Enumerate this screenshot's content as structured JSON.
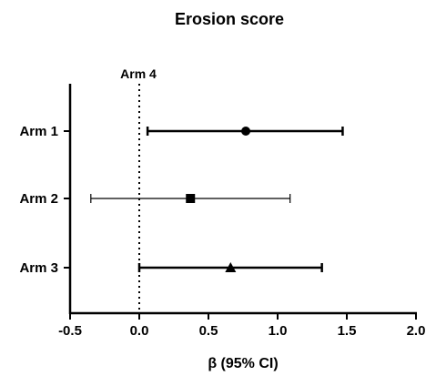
{
  "chart_data": {
    "type": "forest",
    "title": "Erosion score",
    "xlabel": "β (95% CI)",
    "xlim": [
      -0.5,
      2.0
    ],
    "xticks": [
      "-0.5",
      "0.0",
      "0.5",
      "1.0",
      "1.5",
      "2.0"
    ],
    "reference": {
      "label": "Arm 4",
      "x": 0
    },
    "categories": [
      "Arm 1",
      "Arm 2",
      "Arm 3"
    ],
    "series": [
      {
        "category": "Arm 1",
        "estimate": 0.77,
        "lower": 0.06,
        "upper": 1.47,
        "marker": "circle",
        "line": "bold"
      },
      {
        "category": "Arm 2",
        "estimate": 0.37,
        "lower": -0.35,
        "upper": 1.09,
        "marker": "square",
        "line": "thin"
      },
      {
        "category": "Arm 3",
        "estimate": 0.66,
        "lower": 0.0,
        "upper": 1.32,
        "marker": "triangle",
        "line": "bold"
      }
    ],
    "grid": false,
    "colors": {
      "ink": "#000000"
    }
  }
}
